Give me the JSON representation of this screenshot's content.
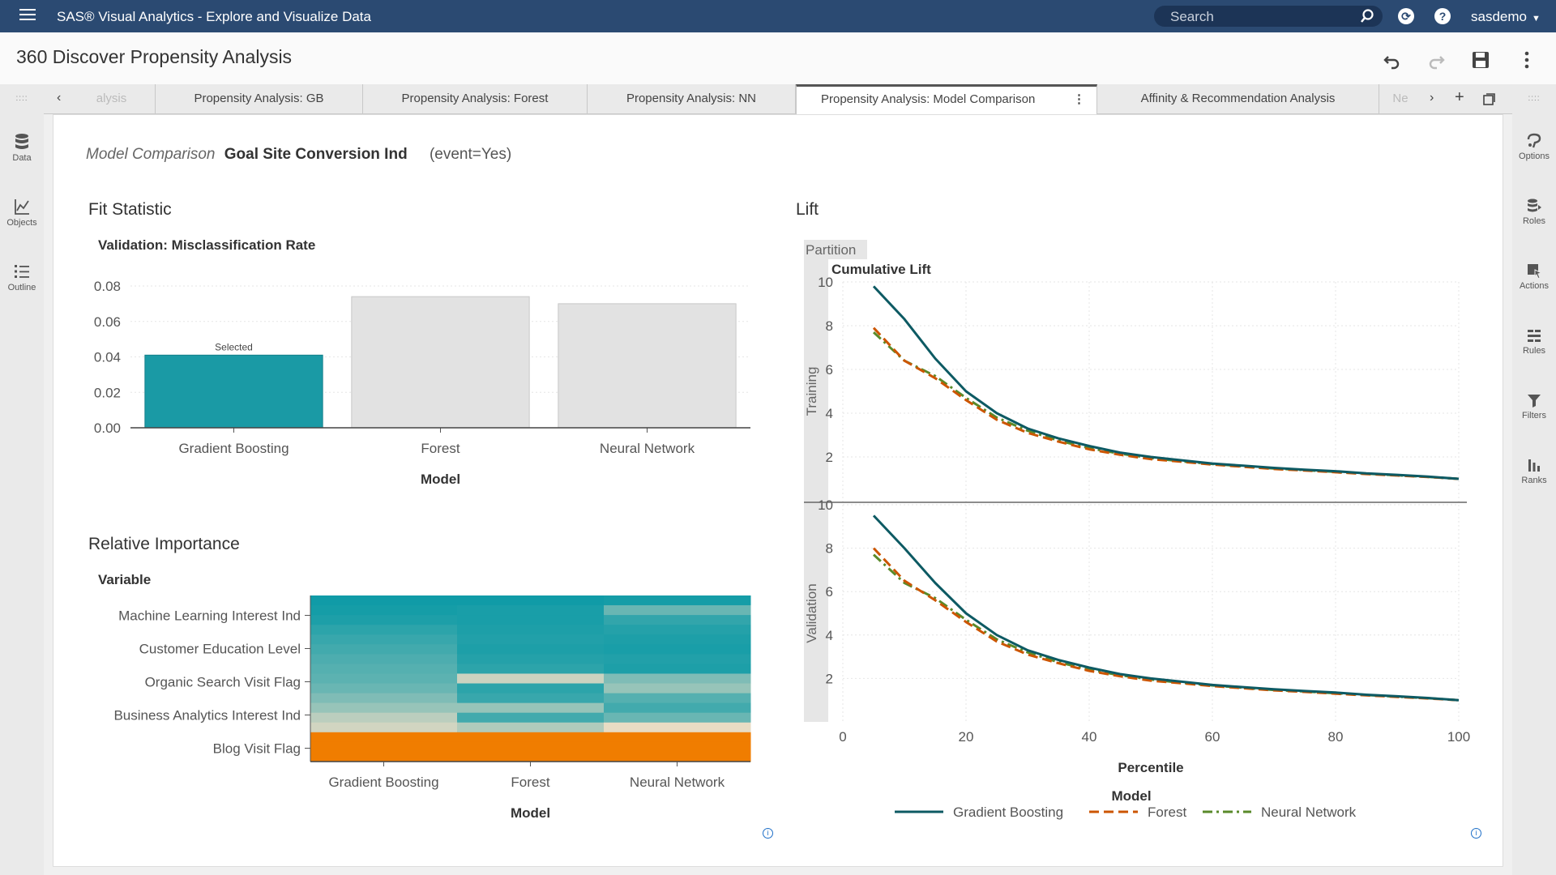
{
  "app": {
    "title": "SAS® Visual Analytics - Explore and Visualize Data",
    "search_placeholder": "Search",
    "user": "sasdemo"
  },
  "report": {
    "name": "360 Discover Propensity Analysis"
  },
  "tabs": [
    {
      "label": "alysis",
      "faded": true
    },
    {
      "label": "Propensity Analysis: GB"
    },
    {
      "label": "Propensity Analysis: Forest"
    },
    {
      "label": "Propensity Analysis: NN"
    },
    {
      "label": "Propensity Analysis: Model Comparison",
      "active": true
    },
    {
      "label": "Affinity & Recommendation Analysis"
    },
    {
      "label": "Ne",
      "faded": true
    }
  ],
  "left_pane": [
    {
      "label": "Data",
      "icon": "database-icon"
    },
    {
      "label": "Objects",
      "icon": "chart-icon"
    },
    {
      "label": "Outline",
      "icon": "list-icon"
    }
  ],
  "right_pane": [
    {
      "label": "Options",
      "icon": "options-icon"
    },
    {
      "label": "Roles",
      "icon": "roles-icon"
    },
    {
      "label": "Actions",
      "icon": "actions-icon"
    },
    {
      "label": "Rules",
      "icon": "rules-icon"
    },
    {
      "label": "Filters",
      "icon": "filter-icon"
    },
    {
      "label": "Ranks",
      "icon": "ranks-icon"
    }
  ],
  "page_title": {
    "prefix": "Model Comparison",
    "target": "Goal Site Conversion Ind",
    "event": "(event=Yes)"
  },
  "chart_data": [
    {
      "type": "bar",
      "title": "Fit Statistic",
      "subtitle": "Validation: Misclassification Rate",
      "categories": [
        "Gradient Boosting",
        "Forest",
        "Neural Network"
      ],
      "values": [
        0.041,
        0.074,
        0.07
      ],
      "selected_index": 0,
      "selected_label": "Selected",
      "xlabel": "Model",
      "ylim": [
        0,
        0.08
      ],
      "yticks": [
        "0.00",
        "0.02",
        "0.04",
        "0.06",
        "0.08"
      ],
      "colors": {
        "selected": "#1a9aa5",
        "other": "#e2e2e2"
      }
    },
    {
      "type": "heatmap",
      "title": "Relative Importance",
      "ylabel": "Variable",
      "xlabel": "Model",
      "columns": [
        "Gradient Boosting",
        "Forest",
        "Neural Network"
      ],
      "row_labels": [
        "Machine Learning Interest Ind",
        "Customer Education Level",
        "Organic Search Visit Flag",
        "Business Analytics Interest Ind",
        "Blog Visit Flag"
      ],
      "cells": [
        [
          0.05,
          0.05,
          0.08
        ],
        [
          0.08,
          0.1,
          0.35
        ],
        [
          0.12,
          0.1,
          0.2
        ],
        [
          0.18,
          0.12,
          0.15
        ],
        [
          0.22,
          0.14,
          0.12
        ],
        [
          0.25,
          0.12,
          0.1
        ],
        [
          0.28,
          0.15,
          0.14
        ],
        [
          0.3,
          0.18,
          0.12
        ],
        [
          0.32,
          0.55,
          0.4
        ],
        [
          0.35,
          0.18,
          0.45
        ],
        [
          0.4,
          0.22,
          0.3
        ],
        [
          0.45,
          0.45,
          0.25
        ],
        [
          0.52,
          0.25,
          0.35
        ],
        [
          0.56,
          0.5,
          0.6
        ],
        [
          0.95,
          0.92,
          0.95
        ],
        [
          0.95,
          0.97,
          0.97
        ],
        [
          0.97,
          0.97,
          0.97
        ]
      ],
      "colors": {
        "low": "#0c9aa6",
        "mid": "#e8dcc4",
        "high": "#f07d00"
      }
    },
    {
      "type": "line",
      "title": "Lift",
      "lattice_label": "Partition",
      "ylabel": "Cumulative Lift",
      "xlabel": "Percentile",
      "legend_title": "Model",
      "xlim": [
        0,
        100
      ],
      "ylim": [
        0,
        10
      ],
      "xticks": [
        0,
        20,
        40,
        60,
        80,
        100
      ],
      "yticks": [
        2,
        4,
        6,
        8,
        10
      ],
      "x": [
        5,
        10,
        15,
        20,
        25,
        30,
        35,
        40,
        45,
        50,
        55,
        60,
        65,
        70,
        75,
        80,
        85,
        90,
        95,
        100
      ],
      "panels": [
        {
          "name": "Training",
          "series": [
            {
              "name": "Gradient Boosting",
              "values": [
                9.8,
                8.3,
                6.5,
                5.0,
                4.0,
                3.3,
                2.85,
                2.5,
                2.2,
                2.0,
                1.85,
                1.7,
                1.6,
                1.5,
                1.42,
                1.35,
                1.25,
                1.18,
                1.1,
                1.0
              ]
            },
            {
              "name": "Forest",
              "values": [
                7.9,
                6.4,
                5.6,
                4.6,
                3.7,
                3.1,
                2.7,
                2.35,
                2.1,
                1.9,
                1.78,
                1.65,
                1.55,
                1.45,
                1.38,
                1.3,
                1.22,
                1.15,
                1.08,
                1.0
              ]
            },
            {
              "name": "Neural Network",
              "values": [
                7.7,
                6.4,
                5.7,
                4.7,
                3.8,
                3.2,
                2.75,
                2.4,
                2.15,
                1.95,
                1.8,
                1.68,
                1.57,
                1.47,
                1.4,
                1.32,
                1.24,
                1.16,
                1.09,
                1.0
              ]
            }
          ]
        },
        {
          "name": "Validation",
          "series": [
            {
              "name": "Gradient Boosting",
              "values": [
                9.5,
                8.0,
                6.4,
                5.0,
                4.0,
                3.3,
                2.85,
                2.5,
                2.2,
                2.0,
                1.85,
                1.7,
                1.6,
                1.5,
                1.42,
                1.35,
                1.25,
                1.18,
                1.1,
                1.0
              ]
            },
            {
              "name": "Forest",
              "values": [
                8.0,
                6.5,
                5.6,
                4.6,
                3.7,
                3.1,
                2.7,
                2.35,
                2.1,
                1.9,
                1.78,
                1.65,
                1.55,
                1.45,
                1.38,
                1.3,
                1.22,
                1.15,
                1.08,
                1.0
              ]
            },
            {
              "name": "Neural Network",
              "values": [
                7.7,
                6.4,
                5.7,
                4.7,
                3.8,
                3.2,
                2.75,
                2.4,
                2.15,
                1.95,
                1.8,
                1.68,
                1.57,
                1.47,
                1.4,
                1.32,
                1.24,
                1.16,
                1.09,
                1.0
              ]
            }
          ]
        }
      ],
      "styles": {
        "Gradient Boosting": {
          "color": "#0d5a63",
          "dash": "solid"
        },
        "Forest": {
          "color": "#cc5500",
          "dash": "dash"
        },
        "Neural Network": {
          "color": "#5a8a2a",
          "dash": "dashdot"
        }
      }
    }
  ]
}
